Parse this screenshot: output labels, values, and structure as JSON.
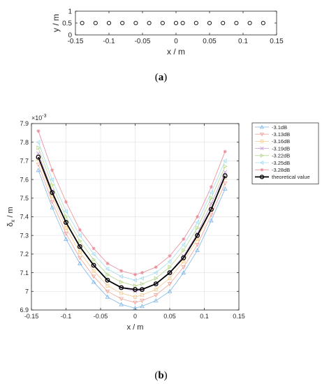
{
  "captions": {
    "a_letter": "a",
    "b_letter": "b"
  },
  "chart_data": [
    {
      "id": "a",
      "type": "scatter",
      "title": "",
      "xlabel": "x / m",
      "ylabel": "y / m",
      "xlim": [
        -0.15,
        0.15
      ],
      "ylim": [
        0,
        1
      ],
      "xticks": [
        -0.15,
        -0.1,
        -0.05,
        0,
        0.05,
        0.1,
        0.15
      ],
      "yticks": [
        0,
        0.5,
        1
      ],
      "xtick_labels": [
        "-0.15",
        "-0.1",
        "-0.05",
        "0",
        "0.05",
        "0.1",
        "0.15"
      ],
      "ytick_labels": [
        "0",
        "0.5",
        "1"
      ],
      "grid": false,
      "x": [
        -0.14,
        -0.12,
        -0.1,
        -0.08,
        -0.06,
        -0.04,
        -0.02,
        0,
        0.01,
        0.03,
        0.05,
        0.07,
        0.09,
        0.11,
        0.13
      ],
      "y": [
        0.5,
        0.5,
        0.5,
        0.5,
        0.5,
        0.5,
        0.5,
        0.5,
        0.5,
        0.5,
        0.5,
        0.5,
        0.5,
        0.5,
        0.5
      ],
      "marker_color": "#000000"
    },
    {
      "id": "b",
      "type": "line",
      "title": "",
      "xlabel": "x / m",
      "ylabel_main": "δ",
      "ylabel_sub": "x",
      "ylabel_unit": " / m",
      "exponent_base": "×10",
      "exponent_power": "-3",
      "xlim": [
        -0.15,
        0.15
      ],
      "ylim": [
        6.9,
        7.9
      ],
      "xticks": [
        -0.15,
        -0.1,
        -0.05,
        0,
        0.05,
        0.1,
        0.15
      ],
      "xtick_labels": [
        "-0.15",
        "-0.1",
        "-0.05",
        "0",
        "0.05",
        "0.1",
        "0.15"
      ],
      "yticks": [
        6.9,
        7.0,
        7.1,
        7.2,
        7.3,
        7.4,
        7.5,
        7.6,
        7.7,
        7.8,
        7.9
      ],
      "ytick_labels": [
        "6.9",
        "7",
        "7.1",
        "7.2",
        "7.3",
        "7.4",
        "7.5",
        "7.6",
        "7.7",
        "7.8",
        "7.9"
      ],
      "grid": true,
      "legend_position": "outside-top-right",
      "x": [
        -0.14,
        -0.12,
        -0.1,
        -0.08,
        -0.06,
        -0.04,
        -0.02,
        0,
        0.01,
        0.03,
        0.05,
        0.07,
        0.09,
        0.11,
        0.13
      ],
      "series": [
        {
          "name": "-3.1dB",
          "color": "#7db7e8",
          "marker": "triangle-up",
          "width": 0.8,
          "values": [
            7.65,
            7.45,
            7.28,
            7.15,
            7.05,
            6.97,
            6.93,
            6.91,
            6.92,
            6.95,
            7.0,
            7.1,
            7.22,
            7.38,
            7.55
          ]
        },
        {
          "name": "-3.13dB",
          "color": "#f0a39a",
          "marker": "triangle-down",
          "width": 0.8,
          "values": [
            7.68,
            7.48,
            7.31,
            7.18,
            7.08,
            7.0,
            6.96,
            6.94,
            6.95,
            6.98,
            7.04,
            7.13,
            7.25,
            7.41,
            7.58
          ]
        },
        {
          "name": "-3.16dB",
          "color": "#f5c98a",
          "marker": "square",
          "width": 0.8,
          "values": [
            7.71,
            7.51,
            7.34,
            7.21,
            7.11,
            7.03,
            6.99,
            6.97,
            6.98,
            7.01,
            7.07,
            7.16,
            7.28,
            7.44,
            7.61
          ]
        },
        {
          "name": "-3.19dB",
          "color": "#c89ad8",
          "marker": "cross",
          "width": 0.8,
          "values": [
            7.74,
            7.54,
            7.37,
            7.24,
            7.14,
            7.06,
            7.02,
            7.0,
            7.01,
            7.04,
            7.1,
            7.19,
            7.31,
            7.47,
            7.64
          ]
        },
        {
          "name": "-3.22dB",
          "color": "#b6d88a",
          "marker": "triangle-right",
          "width": 0.8,
          "values": [
            7.77,
            7.57,
            7.4,
            7.27,
            7.17,
            7.09,
            7.05,
            7.03,
            7.04,
            7.07,
            7.13,
            7.22,
            7.34,
            7.5,
            7.67
          ]
        },
        {
          "name": "-3.25dB",
          "color": "#a8dcef",
          "marker": "triangle-left",
          "width": 0.8,
          "values": [
            7.8,
            7.6,
            7.43,
            7.3,
            7.2,
            7.12,
            7.08,
            7.06,
            7.07,
            7.1,
            7.16,
            7.25,
            7.37,
            7.53,
            7.7
          ]
        },
        {
          "name": "-3.28dB",
          "color": "#e98a98",
          "marker": "star",
          "width": 0.8,
          "values": [
            7.86,
            7.65,
            7.48,
            7.33,
            7.23,
            7.15,
            7.11,
            7.09,
            7.1,
            7.13,
            7.19,
            7.28,
            7.4,
            7.56,
            7.75
          ]
        },
        {
          "name": "theoretical value",
          "color": "#000000",
          "marker": "circle",
          "width": 1.8,
          "values": [
            7.72,
            7.53,
            7.37,
            7.24,
            7.14,
            7.06,
            7.02,
            7.01,
            7.01,
            7.04,
            7.1,
            7.18,
            7.3,
            7.44,
            7.62
          ]
        }
      ]
    }
  ]
}
